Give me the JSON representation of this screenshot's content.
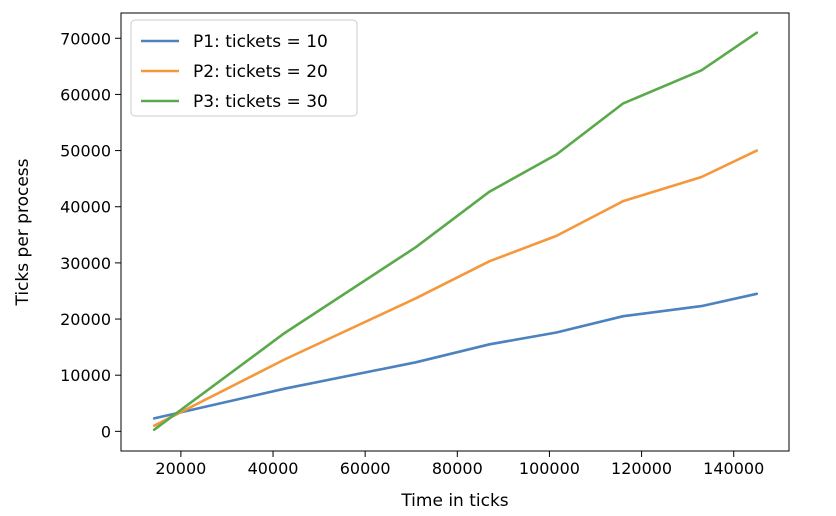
{
  "chart_data": {
    "type": "line",
    "xlabel": "Time in ticks",
    "ylabel": "Ticks per process",
    "xlim": [
      7000,
      152000
    ],
    "ylim": [
      -3500,
      74500
    ],
    "xticks": [
      20000,
      40000,
      60000,
      80000,
      100000,
      120000,
      140000
    ],
    "yticks": [
      0,
      10000,
      20000,
      30000,
      40000,
      50000,
      60000,
      70000
    ],
    "grid": false,
    "legend_position": "top-left",
    "x": [
      14200,
      42500,
      71000,
      87000,
      101500,
      116000,
      133000,
      145000
    ],
    "series": [
      {
        "name": "P1: tickets = 10",
        "color": "#4c82be",
        "values": [
          2300,
          7600,
          12300,
          15500,
          17600,
          20500,
          22300,
          24500
        ]
      },
      {
        "name": "P2: tickets = 20",
        "color": "#f5973b",
        "values": [
          1000,
          12800,
          23700,
          30300,
          34800,
          41000,
          45300,
          50000
        ]
      },
      {
        "name": "P3: tickets = 30",
        "color": "#5aaa4b",
        "values": [
          300,
          17500,
          32800,
          42700,
          49300,
          58400,
          64300,
          71000
        ]
      }
    ]
  }
}
